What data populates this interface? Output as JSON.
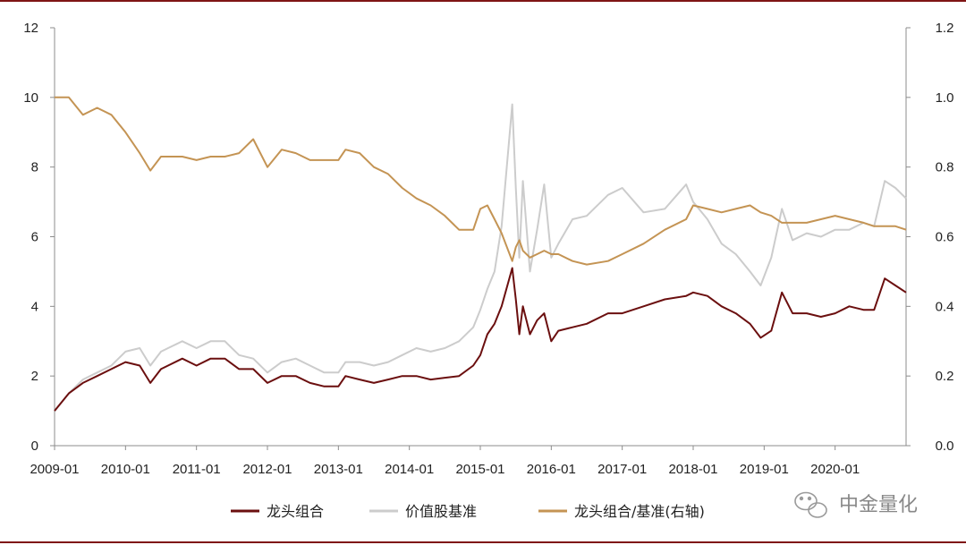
{
  "chart_data": {
    "type": "line",
    "title": "",
    "xlabel": "",
    "ylabel": "",
    "y2label": "",
    "x_ticks": [
      "2009-01",
      "2010-01",
      "2011-01",
      "2012-01",
      "2013-01",
      "2014-01",
      "2015-01",
      "2016-01",
      "2017-01",
      "2018-01",
      "2019-01",
      "2020-01"
    ],
    "y_ticks": [
      "0",
      "2",
      "4",
      "6",
      "8",
      "10",
      "12"
    ],
    "y2_ticks": [
      "0.0",
      "0.2",
      "0.4",
      "0.6",
      "0.8",
      "1.0",
      "1.2"
    ],
    "ylim": [
      0,
      12
    ],
    "y2lim": [
      0,
      1.2
    ],
    "xlim": [
      2009.0,
      2021.0
    ],
    "grid": false,
    "legend_position": "bottom",
    "series": [
      {
        "name": "龙头组合",
        "axis": "left",
        "color": "#6b0f0f",
        "x": [
          2009.0,
          2009.2,
          2009.4,
          2009.6,
          2009.8,
          2010.0,
          2010.2,
          2010.35,
          2010.5,
          2010.6,
          2010.8,
          2011.0,
          2011.2,
          2011.4,
          2011.6,
          2011.8,
          2012.0,
          2012.2,
          2012.4,
          2012.6,
          2012.8,
          2013.0,
          2013.1,
          2013.3,
          2013.5,
          2013.7,
          2013.9,
          2014.1,
          2014.3,
          2014.5,
          2014.7,
          2014.9,
          2015.0,
          2015.1,
          2015.2,
          2015.3,
          2015.45,
          2015.5,
          2015.55,
          2015.6,
          2015.7,
          2015.8,
          2015.9,
          2016.0,
          2016.1,
          2016.3,
          2016.5,
          2016.8,
          2017.0,
          2017.3,
          2017.6,
          2017.9,
          2018.0,
          2018.2,
          2018.4,
          2018.6,
          2018.8,
          2018.95,
          2019.1,
          2019.25,
          2019.4,
          2019.6,
          2019.8,
          2020.0,
          2020.2,
          2020.4,
          2020.55,
          2020.7,
          2020.85,
          2021.0
        ],
        "values": [
          1.0,
          1.5,
          1.8,
          2.0,
          2.2,
          2.4,
          2.3,
          1.8,
          2.2,
          2.3,
          2.5,
          2.3,
          2.5,
          2.5,
          2.2,
          2.2,
          1.8,
          2.0,
          2.0,
          1.8,
          1.7,
          1.7,
          2.0,
          1.9,
          1.8,
          1.9,
          2.0,
          2.0,
          1.9,
          1.95,
          2.0,
          2.3,
          2.6,
          3.2,
          3.5,
          4.0,
          5.1,
          4.2,
          3.2,
          4.0,
          3.2,
          3.6,
          3.8,
          3.0,
          3.3,
          3.4,
          3.5,
          3.8,
          3.8,
          4.0,
          4.2,
          4.3,
          4.4,
          4.3,
          4.0,
          3.8,
          3.5,
          3.1,
          3.3,
          4.4,
          3.8,
          3.8,
          3.7,
          3.8,
          4.0,
          3.9,
          3.9,
          4.8,
          4.6,
          4.4
        ]
      },
      {
        "name": "价值股基准",
        "axis": "left",
        "color": "#cccccc",
        "x": [
          2009.0,
          2009.2,
          2009.4,
          2009.6,
          2009.8,
          2010.0,
          2010.2,
          2010.35,
          2010.5,
          2010.6,
          2010.8,
          2011.0,
          2011.2,
          2011.4,
          2011.6,
          2011.8,
          2012.0,
          2012.2,
          2012.4,
          2012.6,
          2012.8,
          2013.0,
          2013.1,
          2013.3,
          2013.5,
          2013.7,
          2013.9,
          2014.1,
          2014.3,
          2014.5,
          2014.7,
          2014.9,
          2015.0,
          2015.1,
          2015.2,
          2015.3,
          2015.45,
          2015.5,
          2015.55,
          2015.6,
          2015.7,
          2015.8,
          2015.9,
          2016.0,
          2016.1,
          2016.3,
          2016.5,
          2016.8,
          2017.0,
          2017.3,
          2017.6,
          2017.9,
          2018.0,
          2018.2,
          2018.4,
          2018.6,
          2018.8,
          2018.95,
          2019.1,
          2019.25,
          2019.4,
          2019.6,
          2019.8,
          2020.0,
          2020.2,
          2020.4,
          2020.55,
          2020.7,
          2020.85,
          2021.0
        ],
        "values": [
          1.0,
          1.5,
          1.9,
          2.1,
          2.3,
          2.7,
          2.8,
          2.3,
          2.7,
          2.8,
          3.0,
          2.8,
          3.0,
          3.0,
          2.6,
          2.5,
          2.1,
          2.4,
          2.5,
          2.3,
          2.1,
          2.1,
          2.4,
          2.4,
          2.3,
          2.4,
          2.6,
          2.8,
          2.7,
          2.8,
          3.0,
          3.4,
          3.9,
          4.5,
          5.0,
          6.3,
          9.8,
          7.4,
          5.4,
          7.6,
          5.0,
          6.2,
          7.5,
          5.4,
          5.8,
          6.5,
          6.6,
          7.2,
          7.4,
          6.7,
          6.8,
          7.5,
          7.0,
          6.5,
          5.8,
          5.5,
          5.0,
          4.6,
          5.4,
          6.8,
          5.9,
          6.1,
          6.0,
          6.2,
          6.2,
          6.4,
          6.3,
          7.6,
          7.4,
          7.1
        ]
      },
      {
        "name": "龙头组合/基准(右轴)",
        "axis": "right",
        "color": "#c49454",
        "x": [
          2009.0,
          2009.2,
          2009.4,
          2009.6,
          2009.8,
          2010.0,
          2010.2,
          2010.35,
          2010.5,
          2010.6,
          2010.8,
          2011.0,
          2011.2,
          2011.4,
          2011.6,
          2011.8,
          2012.0,
          2012.2,
          2012.4,
          2012.6,
          2012.8,
          2013.0,
          2013.1,
          2013.3,
          2013.5,
          2013.7,
          2013.9,
          2014.1,
          2014.3,
          2014.5,
          2014.7,
          2014.9,
          2015.0,
          2015.1,
          2015.2,
          2015.3,
          2015.45,
          2015.5,
          2015.55,
          2015.6,
          2015.7,
          2015.8,
          2015.9,
          2016.0,
          2016.1,
          2016.3,
          2016.5,
          2016.8,
          2017.0,
          2017.3,
          2017.6,
          2017.9,
          2018.0,
          2018.2,
          2018.4,
          2018.6,
          2018.8,
          2018.95,
          2019.1,
          2019.25,
          2019.4,
          2019.6,
          2019.8,
          2020.0,
          2020.2,
          2020.4,
          2020.55,
          2020.7,
          2020.85,
          2021.0
        ],
        "values": [
          1.0,
          1.0,
          0.95,
          0.97,
          0.95,
          0.9,
          0.84,
          0.79,
          0.83,
          0.83,
          0.83,
          0.82,
          0.83,
          0.83,
          0.84,
          0.88,
          0.8,
          0.85,
          0.84,
          0.82,
          0.82,
          0.82,
          0.85,
          0.84,
          0.8,
          0.78,
          0.74,
          0.71,
          0.69,
          0.66,
          0.62,
          0.62,
          0.68,
          0.69,
          0.65,
          0.61,
          0.53,
          0.57,
          0.59,
          0.56,
          0.54,
          0.55,
          0.56,
          0.55,
          0.55,
          0.53,
          0.52,
          0.53,
          0.55,
          0.58,
          0.62,
          0.65,
          0.69,
          0.68,
          0.67,
          0.68,
          0.69,
          0.67,
          0.66,
          0.64,
          0.64,
          0.64,
          0.65,
          0.66,
          0.65,
          0.64,
          0.63,
          0.63,
          0.63,
          0.62
        ]
      }
    ]
  },
  "watermark": {
    "text": "中金量化",
    "icon": "wechat-icon"
  },
  "colors": {
    "rule": "#7f1414",
    "axis": "#8c8c8c"
  }
}
